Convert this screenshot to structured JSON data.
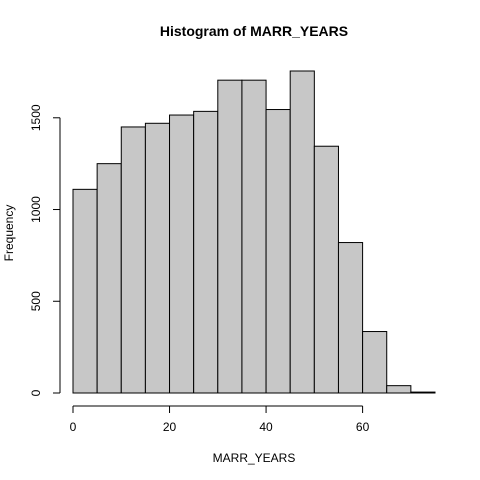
{
  "chart_data": {
    "type": "bar",
    "title": "Histogram of MARR_YEARS",
    "xlabel": "MARR_YEARS",
    "ylabel": "Frequency",
    "bins": [
      {
        "start": 0,
        "end": 5,
        "count": 1110
      },
      {
        "start": 5,
        "end": 10,
        "count": 1250
      },
      {
        "start": 10,
        "end": 15,
        "count": 1450
      },
      {
        "start": 15,
        "end": 20,
        "count": 1470
      },
      {
        "start": 20,
        "end": 25,
        "count": 1515
      },
      {
        "start": 25,
        "end": 30,
        "count": 1535
      },
      {
        "start": 30,
        "end": 35,
        "count": 1705
      },
      {
        "start": 35,
        "end": 40,
        "count": 1705
      },
      {
        "start": 40,
        "end": 45,
        "count": 1545
      },
      {
        "start": 45,
        "end": 50,
        "count": 1755
      },
      {
        "start": 50,
        "end": 55,
        "count": 1345
      },
      {
        "start": 55,
        "end": 60,
        "count": 820
      },
      {
        "start": 60,
        "end": 65,
        "count": 335
      },
      {
        "start": 65,
        "end": 70,
        "count": 40
      },
      {
        "start": 70,
        "end": 75,
        "count": 5
      }
    ],
    "xlim": [
      0,
      75
    ],
    "ylim": [
      0,
      1755
    ],
    "xticks": [
      0,
      20,
      40,
      60
    ],
    "yticks": [
      0,
      500,
      1000,
      1500
    ],
    "grid": false,
    "colors": {
      "bar_fill": "#c7c7c7",
      "bar_stroke": "#000000"
    }
  }
}
